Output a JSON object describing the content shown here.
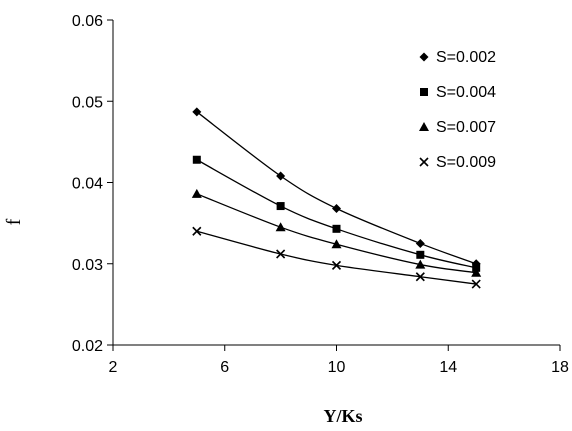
{
  "chart_data": {
    "type": "line",
    "title": "",
    "xlabel": "Y/Ks",
    "ylabel": "f",
    "xlim": [
      2,
      18
    ],
    "ylim": [
      0.02,
      0.06
    ],
    "xticks": [
      2,
      6,
      10,
      14,
      18
    ],
    "xtick_labels": [
      "2",
      "6",
      "10",
      "14",
      "18"
    ],
    "yticks": [
      0.02,
      0.03,
      0.04,
      0.05,
      0.06
    ],
    "ytick_labels": [
      "0.02",
      "0.03",
      "0.04",
      "0.05",
      "0.06"
    ],
    "grid": false,
    "legend_position": "top-right",
    "x": [
      5,
      8,
      10,
      13,
      15
    ],
    "series": [
      {
        "name": "S=0.002",
        "marker": "diamond",
        "color": "#000000",
        "values": [
          0.0487,
          0.0408,
          0.0368,
          0.0325,
          0.03
        ]
      },
      {
        "name": "S=0.004",
        "marker": "square",
        "color": "#000000",
        "values": [
          0.0428,
          0.0371,
          0.0343,
          0.0311,
          0.0295
        ]
      },
      {
        "name": "S=0.007",
        "marker": "triangle",
        "color": "#000000",
        "values": [
          0.0386,
          0.0345,
          0.0324,
          0.0299,
          0.0289
        ]
      },
      {
        "name": "S=0.009",
        "marker": "x",
        "color": "#000000",
        "values": [
          0.034,
          0.0312,
          0.0298,
          0.0284,
          0.0275
        ]
      }
    ]
  }
}
